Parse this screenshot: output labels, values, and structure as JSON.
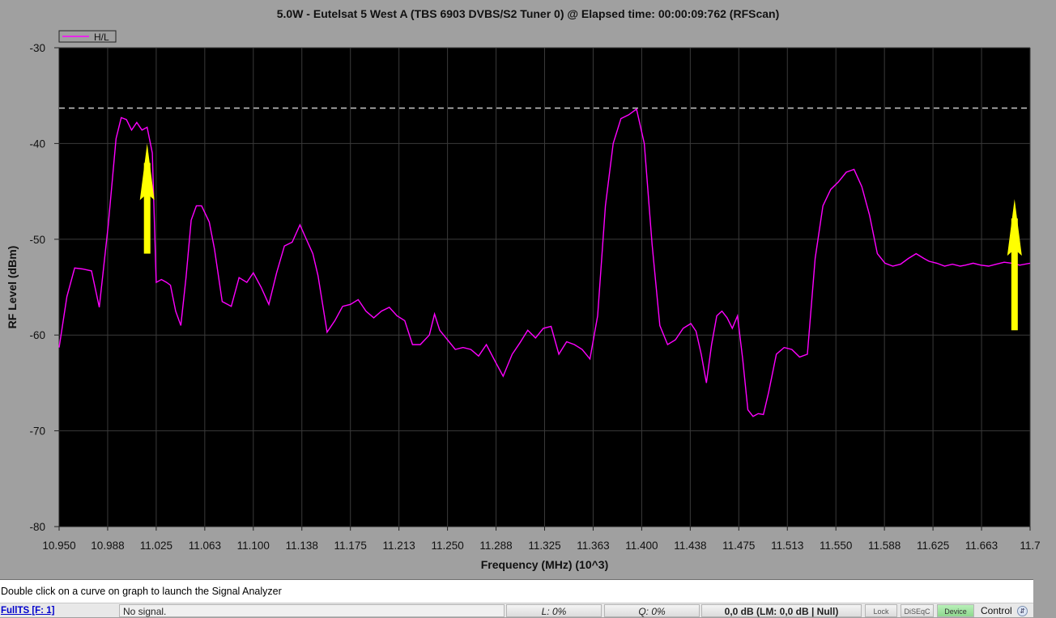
{
  "window": {
    "title": "5.0W - Eutelsat 5 West A (TBS 6903 DVBS/S2 Tuner 0) @ Elapsed time: 00:00:09:762 (RFScan)"
  },
  "hint": "Double click on a curve on graph to launch the Signal Analyzer",
  "status_bar": {
    "fullts": "FullTS [F: 1]",
    "signal": "No signal.",
    "l_level": "L: 0%",
    "q_level": "Q: 0%",
    "snr": "0,0 dB (LM: 0,0 dB | Null)",
    "lock": "Lock",
    "diseqc": "DiSEqC",
    "device": "Device",
    "control": "Control"
  },
  "colors": {
    "panel": "#a0a0a0",
    "plot_background": "#000000",
    "curve": "#ff00ff",
    "gridline": "#3a3a3a",
    "reference_line": "#c8c8c8",
    "arrow": "#ffff00"
  },
  "chart_data": {
    "type": "line",
    "title": "5.0W - Eutelsat 5 West A (TBS 6903 DVBS/S2 Tuner 0) @ Elapsed time: 00:00:09:762 (RFScan)",
    "xlabel": "Frequency (MHz) (10^3)",
    "ylabel": "RF Level (dBm)",
    "xlim": [
      10.95,
      11.7
    ],
    "ylim": [
      -80,
      -30
    ],
    "x_tick_labels": [
      "10.950",
      "10.988",
      "11.025",
      "11.063",
      "11.100",
      "11.138",
      "11.175",
      "11.213",
      "11.250",
      "11.288",
      "11.325",
      "11.363",
      "11.400",
      "11.438",
      "11.475",
      "11.513",
      "11.550",
      "11.588",
      "11.625",
      "11.663",
      "11.7"
    ],
    "y_ticks": [
      -30,
      -40,
      -50,
      -60,
      -70,
      -80
    ],
    "grid": true,
    "legend": "top-left",
    "reference_level": -36.3,
    "annotations": [
      {
        "type": "arrow",
        "x": 11.018,
        "y_from": -51.5,
        "y_to": -40.0
      },
      {
        "type": "arrow",
        "x": 11.688,
        "y_from": -59.5,
        "y_to": -45.8
      }
    ],
    "series": [
      {
        "name": "H/L",
        "x": [
          10.95,
          10.956,
          10.962,
          10.968,
          10.975,
          10.981,
          10.988,
          10.994,
          10.998,
          11.002,
          11.006,
          11.01,
          11.014,
          11.018,
          11.022,
          11.025,
          11.029,
          11.033,
          11.036,
          11.04,
          11.044,
          11.048,
          11.052,
          11.056,
          11.06,
          11.066,
          11.07,
          11.076,
          11.083,
          11.089,
          11.095,
          11.1,
          11.106,
          11.112,
          11.118,
          11.124,
          11.13,
          11.136,
          11.142,
          11.146,
          11.15,
          11.157,
          11.163,
          11.169,
          11.175,
          11.181,
          11.187,
          11.193,
          11.199,
          11.205,
          11.211,
          11.217,
          11.223,
          11.229,
          11.236,
          11.24,
          11.244,
          11.25,
          11.256,
          11.262,
          11.268,
          11.274,
          11.28,
          11.287,
          11.293,
          11.3,
          11.306,
          11.312,
          11.318,
          11.324,
          11.33,
          11.336,
          11.342,
          11.348,
          11.354,
          11.36,
          11.366,
          11.372,
          11.378,
          11.384,
          11.39,
          11.396,
          11.402,
          11.408,
          11.414,
          11.42,
          11.426,
          11.432,
          11.438,
          11.442,
          11.446,
          11.45,
          11.454,
          11.458,
          11.462,
          11.466,
          11.47,
          11.474,
          11.478,
          11.482,
          11.486,
          11.49,
          11.494,
          11.498,
          11.504,
          11.51,
          11.516,
          11.522,
          11.528,
          11.534,
          11.54,
          11.546,
          11.552,
          11.558,
          11.564,
          11.57,
          11.576,
          11.582,
          11.588,
          11.594,
          11.6,
          11.606,
          11.612,
          11.618,
          11.622,
          11.628,
          11.634,
          11.64,
          11.646,
          11.65,
          11.656,
          11.662,
          11.668,
          11.674,
          11.68,
          11.686,
          11.692,
          11.7
        ],
        "y": [
          -61.3,
          -56.0,
          -53.0,
          -53.1,
          -53.3,
          -57.1,
          -48.5,
          -39.5,
          -37.3,
          -37.5,
          -38.6,
          -37.8,
          -38.6,
          -38.3,
          -41.0,
          -54.5,
          -54.2,
          -54.5,
          -54.8,
          -57.5,
          -59.0,
          -54.0,
          -48.0,
          -46.5,
          -46.5,
          -48.2,
          -51.0,
          -56.5,
          -57.0,
          -54.0,
          -54.5,
          -53.5,
          -55.0,
          -56.8,
          -53.5,
          -50.7,
          -50.3,
          -48.5,
          -50.3,
          -51.5,
          -53.8,
          -59.7,
          -58.5,
          -57.0,
          -56.8,
          -56.3,
          -57.5,
          -58.2,
          -57.5,
          -57.1,
          -58.0,
          -58.5,
          -61.0,
          -61.0,
          -60.0,
          -57.8,
          -59.5,
          -60.5,
          -61.5,
          -61.3,
          -61.5,
          -62.2,
          -61.0,
          -62.8,
          -64.3,
          -62.0,
          -60.8,
          -59.5,
          -60.3,
          -59.3,
          -59.1,
          -62.0,
          -60.7,
          -61.0,
          -61.5,
          -62.5,
          -58.0,
          -46.5,
          -40.0,
          -37.4,
          -37.0,
          -36.4,
          -40.0,
          -50.5,
          -59.0,
          -61.0,
          -60.5,
          -59.3,
          -58.8,
          -59.6,
          -62.0,
          -65.0,
          -61.0,
          -58.0,
          -57.5,
          -58.2,
          -59.3,
          -58.0,
          -62.5,
          -67.8,
          -68.5,
          -68.2,
          -68.3,
          -66.0,
          -62.0,
          -61.3,
          -61.5,
          -62.3,
          -62.0,
          -52.0,
          -46.5,
          -44.8,
          -44.0,
          -43.0,
          -42.7,
          -44.5,
          -47.5,
          -51.5,
          -52.5,
          -52.8,
          -52.6,
          -52.0,
          -51.5,
          -52.0,
          -52.3,
          -52.5,
          -52.8,
          -52.6,
          -52.8,
          -52.7,
          -52.5,
          -52.7,
          -52.8,
          -52.6,
          -52.4,
          -52.5,
          -52.7,
          -52.5
        ]
      }
    ]
  }
}
